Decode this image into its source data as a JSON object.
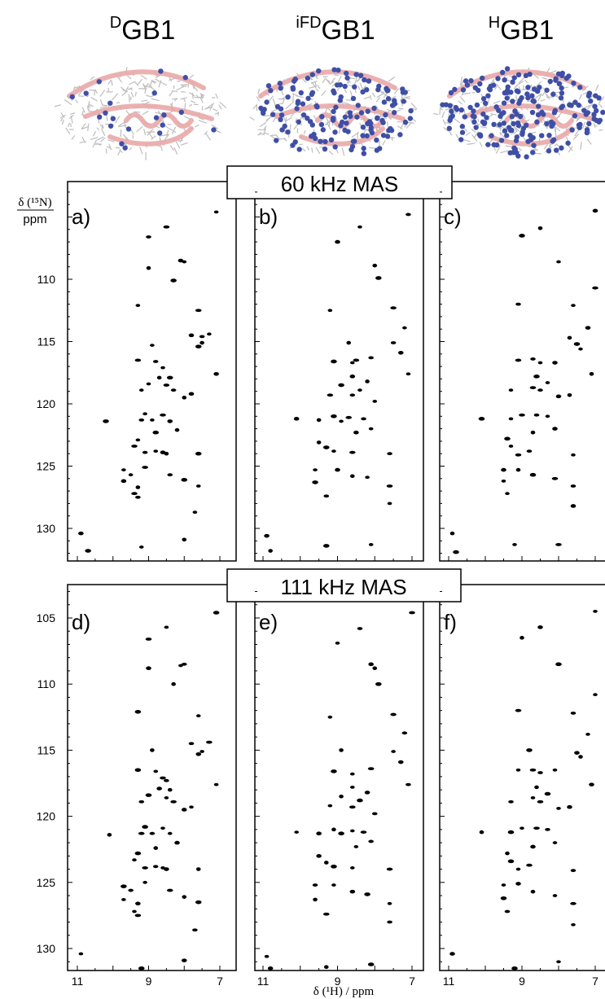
{
  "figure": {
    "y_axis_label_line1": "δ (¹⁵N)",
    "y_axis_label_line2": "ppm",
    "x_axis_label": "δ (¹H) / ppm",
    "mas_labels": [
      "60 kHz MAS",
      "111 kHz MAS"
    ]
  },
  "proteins": [
    {
      "sup": "D",
      "name": "GB1"
    },
    {
      "sup": "iFD",
      "name": "GB1"
    },
    {
      "sup": "H",
      "name": "GB1"
    }
  ],
  "colors": {
    "ribbon": "#e9a9a8",
    "sticks": "#bdbdbd",
    "protons": "#3f4fa6",
    "contours": "#000000"
  },
  "chart_data": [
    {
      "type": "scatter",
      "panel": "a)",
      "sample": "DGB1",
      "spinning": "60 kHz MAS",
      "xlim": [
        11.1,
        6.8
      ],
      "ylim": [
        133,
        102.5
      ],
      "x_ticks": [
        11,
        9,
        7
      ],
      "y_ticks": [
        110,
        115,
        120,
        125,
        130
      ],
      "peaks": [
        [
          7.1,
          104.6
        ],
        [
          8.5,
          105.8
        ],
        [
          9.0,
          106.6
        ],
        [
          8.0,
          108.6
        ],
        [
          8.1,
          108.5
        ],
        [
          9.0,
          109.1
        ],
        [
          8.3,
          110.1
        ],
        [
          9.3,
          112.1
        ],
        [
          7.6,
          112.5
        ],
        [
          7.5,
          114.6
        ],
        [
          7.3,
          114.4
        ],
        [
          7.8,
          114.5
        ],
        [
          7.5,
          115.1
        ],
        [
          7.6,
          115.4
        ],
        [
          8.9,
          115.3
        ],
        [
          9.3,
          116.5
        ],
        [
          8.8,
          116.6
        ],
        [
          8.6,
          117.1
        ],
        [
          7.1,
          117.6
        ],
        [
          8.7,
          117.9
        ],
        [
          8.4,
          117.9
        ],
        [
          9.0,
          118.4
        ],
        [
          8.5,
          118.5
        ],
        [
          8.3,
          118.9
        ],
        [
          9.2,
          118.9
        ],
        [
          7.8,
          119.2
        ],
        [
          8.0,
          119.5
        ],
        [
          10.2,
          121.4
        ],
        [
          9.1,
          120.8
        ],
        [
          8.6,
          120.9
        ],
        [
          9.2,
          121.3
        ],
        [
          8.9,
          121.3
        ],
        [
          8.4,
          121.4
        ],
        [
          8.2,
          122.1
        ],
        [
          8.8,
          122.3
        ],
        [
          9.3,
          122.9
        ],
        [
          9.4,
          123.4
        ],
        [
          9.1,
          123.9
        ],
        [
          8.8,
          123.8
        ],
        [
          8.6,
          123.9
        ],
        [
          8.5,
          124.0
        ],
        [
          7.6,
          124.0
        ],
        [
          9.7,
          125.3
        ],
        [
          9.1,
          125.1
        ],
        [
          8.4,
          125.7
        ],
        [
          9.5,
          125.7
        ],
        [
          9.7,
          126.2
        ],
        [
          9.3,
          126.7
        ],
        [
          8.0,
          126.1
        ],
        [
          7.6,
          126.6
        ],
        [
          9.4,
          127.2
        ],
        [
          9.3,
          127.5
        ],
        [
          7.7,
          128.7
        ],
        [
          10.9,
          130.4
        ],
        [
          8.0,
          130.9
        ],
        [
          10.7,
          131.8
        ],
        [
          9.2,
          131.5
        ]
      ]
    },
    {
      "type": "scatter",
      "panel": "b)",
      "sample": "iFDGB1",
      "spinning": "60 kHz MAS",
      "xlim": [
        11.1,
        6.8
      ],
      "ylim": [
        133,
        102.5
      ],
      "x_ticks": [
        11,
        9,
        7
      ],
      "y_ticks": [
        110,
        115,
        120,
        125,
        130
      ],
      "peaks": [
        [
          7.1,
          104.8
        ],
        [
          8.4,
          105.8
        ],
        [
          9.0,
          107.0
        ],
        [
          8.0,
          108.9
        ],
        [
          7.9,
          109.9
        ],
        [
          9.2,
          112.5
        ],
        [
          7.5,
          112.3
        ],
        [
          7.5,
          115.1
        ],
        [
          7.2,
          113.9
        ],
        [
          7.3,
          115.9
        ],
        [
          8.7,
          115.1
        ],
        [
          9.1,
          116.6
        ],
        [
          8.6,
          116.7
        ],
        [
          8.5,
          116.5
        ],
        [
          8.1,
          116.3
        ],
        [
          7.1,
          117.6
        ],
        [
          8.6,
          117.8
        ],
        [
          8.2,
          118.2
        ],
        [
          8.9,
          118.5
        ],
        [
          8.4,
          118.9
        ],
        [
          9.2,
          119.3
        ],
        [
          8.6,
          119.3
        ],
        [
          8.0,
          119.8
        ],
        [
          10.1,
          121.2
        ],
        [
          9.5,
          121.3
        ],
        [
          9.1,
          121.0
        ],
        [
          8.9,
          121.4
        ],
        [
          8.7,
          121.1
        ],
        [
          8.3,
          121.2
        ],
        [
          8.1,
          122.0
        ],
        [
          8.5,
          122.3
        ],
        [
          9.5,
          123.1
        ],
        [
          9.3,
          123.5
        ],
        [
          9.1,
          123.8
        ],
        [
          8.6,
          123.9
        ],
        [
          7.6,
          124.0
        ],
        [
          9.6,
          125.3
        ],
        [
          9.0,
          125.3
        ],
        [
          8.6,
          125.8
        ],
        [
          9.6,
          126.3
        ],
        [
          8.2,
          125.9
        ],
        [
          7.6,
          126.6
        ],
        [
          9.3,
          127.4
        ],
        [
          7.6,
          128.0
        ],
        [
          10.9,
          130.6
        ],
        [
          10.8,
          131.8
        ],
        [
          9.3,
          131.4
        ],
        [
          8.1,
          131.3
        ]
      ]
    },
    {
      "type": "scatter",
      "panel": "c)",
      "sample": "HGB1",
      "spinning": "60 kHz MAS",
      "xlim": [
        11.1,
        6.8
      ],
      "ylim": [
        133,
        102.5
      ],
      "x_ticks": [
        11,
        9,
        7
      ],
      "y_ticks": [
        110,
        115,
        120,
        125,
        130
      ],
      "peaks": [
        [
          7.0,
          104.5
        ],
        [
          8.5,
          105.9
        ],
        [
          9.0,
          106.5
        ],
        [
          8.0,
          108.6
        ],
        [
          7.0,
          110.7
        ],
        [
          9.1,
          112.0
        ],
        [
          7.6,
          112.1
        ],
        [
          7.2,
          113.9
        ],
        [
          7.7,
          114.7
        ],
        [
          7.5,
          115.2
        ],
        [
          7.4,
          115.6
        ],
        [
          9.1,
          116.5
        ],
        [
          8.7,
          116.4
        ],
        [
          8.5,
          116.7
        ],
        [
          8.1,
          116.7
        ],
        [
          7.1,
          117.6
        ],
        [
          8.6,
          117.8
        ],
        [
          8.3,
          118.3
        ],
        [
          8.7,
          118.7
        ],
        [
          8.5,
          118.9
        ],
        [
          9.3,
          118.9
        ],
        [
          8.0,
          119.4
        ],
        [
          7.7,
          119.3
        ],
        [
          10.1,
          121.2
        ],
        [
          9.3,
          121.2
        ],
        [
          9.0,
          120.9
        ],
        [
          8.6,
          120.9
        ],
        [
          8.3,
          121.0
        ],
        [
          8.1,
          122.0
        ],
        [
          8.7,
          122.3
        ],
        [
          9.4,
          122.8
        ],
        [
          9.3,
          123.4
        ],
        [
          9.1,
          124.1
        ],
        [
          8.8,
          123.8
        ],
        [
          7.6,
          124.1
        ],
        [
          9.5,
          125.3
        ],
        [
          9.1,
          125.3
        ],
        [
          8.7,
          125.7
        ],
        [
          9.5,
          126.2
        ],
        [
          8.1,
          126.0
        ],
        [
          7.6,
          126.6
        ],
        [
          9.4,
          127.2
        ],
        [
          7.6,
          128.2
        ],
        [
          10.9,
          130.4
        ],
        [
          10.8,
          131.9
        ],
        [
          9.2,
          131.3
        ],
        [
          8.0,
          131.3
        ]
      ]
    },
    {
      "type": "scatter",
      "panel": "d)",
      "sample": "DGB1",
      "spinning": "111 kHz MAS",
      "xlim": [
        11.1,
        6.8
      ],
      "ylim": [
        133,
        102.5
      ],
      "x_ticks": [
        11,
        9,
        7
      ],
      "y_ticks": [
        105,
        110,
        115,
        120,
        125,
        130
      ],
      "peaks": [
        [
          7.1,
          104.6
        ],
        [
          8.5,
          105.7
        ],
        [
          9.0,
          106.6
        ],
        [
          8.0,
          108.5
        ],
        [
          8.1,
          108.6
        ],
        [
          9.0,
          108.8
        ],
        [
          8.3,
          110.0
        ],
        [
          9.3,
          112.1
        ],
        [
          7.6,
          112.4
        ],
        [
          7.3,
          114.4
        ],
        [
          7.8,
          114.5
        ],
        [
          7.5,
          115.1
        ],
        [
          7.6,
          115.3
        ],
        [
          8.9,
          115.0
        ],
        [
          9.3,
          116.5
        ],
        [
          8.8,
          116.6
        ],
        [
          8.6,
          117.1
        ],
        [
          8.5,
          117.3
        ],
        [
          7.1,
          117.6
        ],
        [
          8.7,
          117.9
        ],
        [
          8.4,
          118.0
        ],
        [
          9.0,
          118.4
        ],
        [
          8.5,
          118.6
        ],
        [
          8.3,
          118.9
        ],
        [
          9.2,
          118.9
        ],
        [
          7.8,
          119.3
        ],
        [
          8.0,
          119.5
        ],
        [
          10.1,
          121.4
        ],
        [
          9.1,
          120.8
        ],
        [
          8.6,
          120.9
        ],
        [
          9.2,
          121.3
        ],
        [
          8.9,
          121.3
        ],
        [
          8.4,
          121.3
        ],
        [
          8.2,
          122.0
        ],
        [
          8.8,
          122.4
        ],
        [
          9.3,
          122.8
        ],
        [
          9.4,
          123.3
        ],
        [
          9.1,
          123.9
        ],
        [
          8.8,
          123.8
        ],
        [
          8.6,
          123.9
        ],
        [
          8.5,
          124.0
        ],
        [
          7.6,
          124.0
        ],
        [
          9.7,
          125.3
        ],
        [
          9.1,
          125.0
        ],
        [
          8.4,
          125.6
        ],
        [
          9.5,
          125.6
        ],
        [
          9.7,
          126.3
        ],
        [
          9.3,
          126.6
        ],
        [
          8.0,
          126.1
        ],
        [
          7.6,
          126.5
        ],
        [
          9.4,
          127.2
        ],
        [
          9.3,
          127.5
        ],
        [
          7.7,
          128.6
        ],
        [
          10.9,
          130.4
        ],
        [
          8.0,
          130.9
        ],
        [
          10.7,
          131.8
        ],
        [
          9.2,
          131.5
        ]
      ]
    },
    {
      "type": "scatter",
      "panel": "e)",
      "sample": "iFDGB1",
      "spinning": "111 kHz MAS",
      "xlim": [
        11.1,
        6.8
      ],
      "ylim": [
        133,
        102.5
      ],
      "x_ticks": [
        11,
        9,
        7
      ],
      "y_ticks": [
        105,
        110,
        115,
        120,
        125,
        130
      ],
      "peaks": [
        [
          7.0,
          104.6
        ],
        [
          8.4,
          105.8
        ],
        [
          9.0,
          106.9
        ],
        [
          8.1,
          108.5
        ],
        [
          8.0,
          108.8
        ],
        [
          7.9,
          110.0
        ],
        [
          9.2,
          112.5
        ],
        [
          7.5,
          112.3
        ],
        [
          7.2,
          113.7
        ],
        [
          7.5,
          115.1
        ],
        [
          7.3,
          115.9
        ],
        [
          8.9,
          115.0
        ],
        [
          9.1,
          116.6
        ],
        [
          8.6,
          116.8
        ],
        [
          8.1,
          116.4
        ],
        [
          7.1,
          117.6
        ],
        [
          8.6,
          117.8
        ],
        [
          8.2,
          118.2
        ],
        [
          8.9,
          118.5
        ],
        [
          8.4,
          118.8
        ],
        [
          9.2,
          119.2
        ],
        [
          8.6,
          119.3
        ],
        [
          8.0,
          119.8
        ],
        [
          10.1,
          121.2
        ],
        [
          9.5,
          121.3
        ],
        [
          9.1,
          121.0
        ],
        [
          8.9,
          121.3
        ],
        [
          8.6,
          121.1
        ],
        [
          8.3,
          121.2
        ],
        [
          8.1,
          121.9
        ],
        [
          8.5,
          122.3
        ],
        [
          9.5,
          123.0
        ],
        [
          9.3,
          123.5
        ],
        [
          9.1,
          123.8
        ],
        [
          8.6,
          123.9
        ],
        [
          7.6,
          124.0
        ],
        [
          9.6,
          125.2
        ],
        [
          9.1,
          125.2
        ],
        [
          8.6,
          125.7
        ],
        [
          9.6,
          126.3
        ],
        [
          8.2,
          125.9
        ],
        [
          7.6,
          126.6
        ],
        [
          9.3,
          127.4
        ],
        [
          7.6,
          128.0
        ],
        [
          10.9,
          130.6
        ],
        [
          10.8,
          131.5
        ],
        [
          9.3,
          131.4
        ],
        [
          8.1,
          131.2
        ]
      ]
    },
    {
      "type": "scatter",
      "panel": "f)",
      "sample": "HGB1",
      "spinning": "111 kHz MAS",
      "xlim": [
        11.1,
        6.8
      ],
      "ylim": [
        133,
        102.5
      ],
      "x_ticks": [
        11,
        9,
        7
      ],
      "y_ticks": [
        105,
        110,
        115,
        120,
        125,
        130
      ],
      "peaks": [
        [
          7.0,
          104.5
        ],
        [
          8.5,
          105.7
        ],
        [
          9.0,
          106.5
        ],
        [
          8.0,
          108.5
        ],
        [
          7.0,
          110.8
        ],
        [
          9.1,
          112.0
        ],
        [
          7.6,
          112.2
        ],
        [
          7.2,
          113.8
        ],
        [
          7.5,
          115.2
        ],
        [
          7.4,
          115.5
        ],
        [
          8.8,
          115.0
        ],
        [
          9.1,
          116.5
        ],
        [
          8.7,
          116.5
        ],
        [
          8.5,
          116.7
        ],
        [
          8.1,
          116.5
        ],
        [
          7.1,
          117.6
        ],
        [
          8.6,
          117.8
        ],
        [
          8.3,
          118.3
        ],
        [
          8.7,
          118.6
        ],
        [
          8.5,
          118.9
        ],
        [
          9.3,
          118.9
        ],
        [
          8.0,
          119.4
        ],
        [
          7.7,
          119.3
        ],
        [
          10.1,
          121.2
        ],
        [
          9.3,
          121.2
        ],
        [
          9.0,
          120.9
        ],
        [
          8.6,
          120.9
        ],
        [
          8.3,
          121.0
        ],
        [
          8.1,
          122.0
        ],
        [
          8.7,
          122.3
        ],
        [
          9.4,
          122.8
        ],
        [
          9.3,
          123.4
        ],
        [
          9.1,
          124.0
        ],
        [
          8.8,
          123.7
        ],
        [
          7.6,
          124.1
        ],
        [
          9.5,
          125.2
        ],
        [
          9.1,
          125.1
        ],
        [
          8.7,
          125.7
        ],
        [
          9.5,
          126.2
        ],
        [
          8.1,
          126.0
        ],
        [
          7.6,
          126.6
        ],
        [
          9.4,
          127.2
        ],
        [
          7.6,
          128.2
        ],
        [
          10.9,
          130.4
        ],
        [
          10.8,
          131.8
        ],
        [
          9.2,
          131.5
        ],
        [
          8.0,
          131.0
        ]
      ]
    }
  ]
}
